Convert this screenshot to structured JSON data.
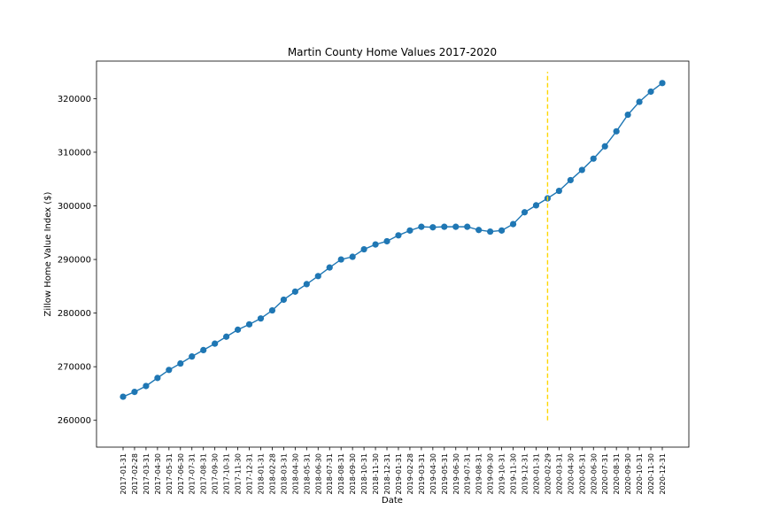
{
  "chart_data": {
    "type": "line",
    "title": "Martin County Home Values 2017-2020",
    "xlabel": "Date",
    "ylabel": "Zillow Home Value Index ($)",
    "ylim": [
      255000,
      327000
    ],
    "yticks": [
      260000,
      270000,
      280000,
      290000,
      300000,
      310000,
      320000
    ],
    "grid": false,
    "line_color": "#1f77b4",
    "categories": [
      "2017-01-31",
      "2017-02-28",
      "2017-03-31",
      "2017-04-30",
      "2017-05-31",
      "2017-06-30",
      "2017-07-31",
      "2017-08-31",
      "2017-09-30",
      "2017-10-31",
      "2017-11-30",
      "2017-12-31",
      "2018-01-31",
      "2018-02-28",
      "2018-03-31",
      "2018-04-30",
      "2018-05-31",
      "2018-06-30",
      "2018-07-31",
      "2018-08-31",
      "2018-09-30",
      "2018-10-31",
      "2018-11-30",
      "2018-12-31",
      "2019-01-31",
      "2019-02-28",
      "2019-03-31",
      "2019-04-30",
      "2019-05-31",
      "2019-06-30",
      "2019-07-31",
      "2019-08-31",
      "2019-09-30",
      "2019-10-31",
      "2019-11-30",
      "2019-12-31",
      "2020-01-31",
      "2020-02-29",
      "2020-03-31",
      "2020-04-30",
      "2020-05-31",
      "2020-06-30",
      "2020-07-31",
      "2020-08-31",
      "2020-09-30",
      "2020-10-31",
      "2020-11-30",
      "2020-12-31"
    ],
    "series": [
      {
        "values": [
          264400,
          265300,
          266400,
          267900,
          269400,
          270600,
          271900,
          273100,
          274300,
          275600,
          276900,
          277900,
          279000,
          280500,
          282500,
          284000,
          285400,
          286900,
          288500,
          290000,
          290500,
          291900,
          292800,
          293400,
          294500,
          295400,
          296100,
          296000,
          296100,
          296100,
          296100,
          295500,
          295200,
          295400,
          296600,
          298800,
          300100,
          301400,
          302800,
          304800,
          306700,
          308800,
          311100,
          313900,
          317000,
          319400,
          321300,
          322900
        ]
      }
    ],
    "reference_line": {
      "x": "2020-02-29",
      "y_range": [
        260000,
        325000
      ],
      "color": "#ffd700",
      "style": "dashed"
    }
  }
}
